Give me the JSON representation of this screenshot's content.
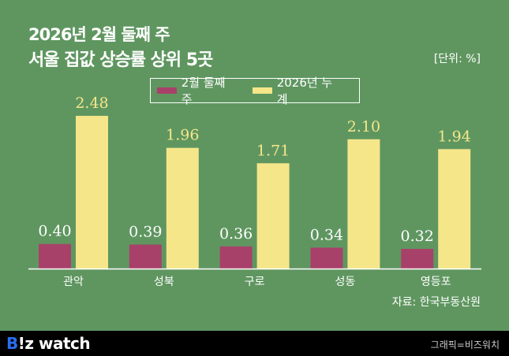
{
  "chart_data": {
    "type": "bar",
    "title": "2026년 2월 둘째 주",
    "subtitle": "서울 집값 상승률 상위 5곳",
    "unit_label": "[단위: %]",
    "categories": [
      "관악",
      "성북",
      "구로",
      "성동",
      "영등포"
    ],
    "series": [
      {
        "name": "2월 둘째주",
        "values": [
          0.4,
          0.39,
          0.36,
          0.34,
          0.32
        ],
        "color": "#a8416a"
      },
      {
        "name": "2026년 누계",
        "values": [
          2.48,
          1.96,
          1.71,
          2.1,
          1.94
        ],
        "color": "#f5e68a"
      }
    ],
    "ylim": [
      0,
      2.5
    ],
    "grid": false,
    "legend_position": "top-center",
    "source": "자료: 한국부동산원"
  },
  "colors": {
    "background": "#5f9660",
    "footer": "#000000",
    "label_text": "#f5e68a"
  },
  "footer": {
    "logo": "B!z watch",
    "logo_b": "B",
    "logo_rest": "!z watch",
    "credit": "그래픽=비즈워치"
  }
}
